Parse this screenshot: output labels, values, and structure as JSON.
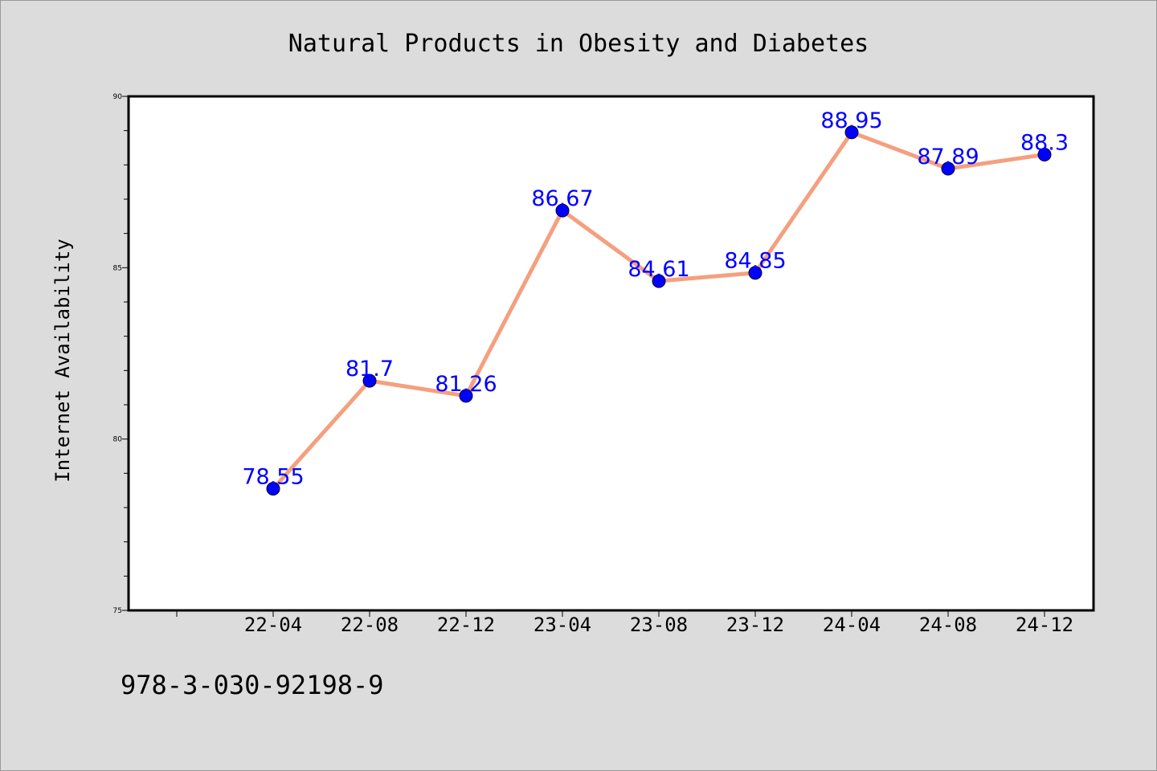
{
  "chart_data": {
    "type": "line",
    "title": "Natural Products in Obesity and Diabetes",
    "xlabel": "",
    "ylabel": "Internet Availability",
    "categories": [
      "22-04",
      "22-08",
      "22-12",
      "23-04",
      "23-08",
      "23-12",
      "24-04",
      "24-08",
      "24-12"
    ],
    "series": [
      {
        "values": [
          78.55,
          81.7,
          81.26,
          86.67,
          84.61,
          84.85,
          88.95,
          87.89,
          88.3
        ],
        "labels": [
          "78.55",
          "81.7",
          "81.26",
          "86.67",
          "84.61",
          "84.85",
          "88.95",
          "87.89",
          "88.3"
        ]
      }
    ],
    "ylim": [
      75,
      90
    ],
    "yticks": [
      75,
      80,
      85,
      90
    ],
    "grid": false,
    "line_color": "#f4a07f",
    "marker_color": "#0000ff",
    "label_color": "#0000ff"
  },
  "footer": {
    "identifier": "978-3-030-92198-9"
  }
}
